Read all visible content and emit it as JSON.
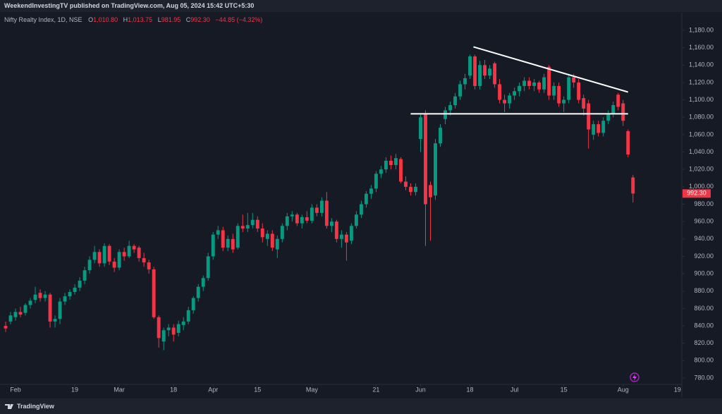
{
  "chart_data": {
    "type": "candlestick",
    "header": "WeekendInvestingTV published on TradingView.com, Aug 05, 2024 15:42 UTC+5:30",
    "legend_title": "Nifty Realty Index, 1D, NSE",
    "ohlc_letters": [
      "O",
      "H",
      "L",
      "C"
    ],
    "ohlc_labels": [
      "1,010.80",
      "1,013.75",
      "981.95",
      "992.30"
    ],
    "change_label": "−44.85 (−4.32%)",
    "last_price_label": "992.30",
    "brand": "TradingView",
    "up_color": "#089981",
    "down_color": "#f23645",
    "candles": [
      [
        840,
        845,
        833,
        837
      ],
      [
        845,
        856,
        842,
        852
      ],
      [
        850,
        860,
        846,
        856
      ],
      [
        856,
        862,
        850,
        853
      ],
      [
        855,
        866,
        852,
        864
      ],
      [
        864,
        872,
        860,
        869
      ],
      [
        870,
        885,
        866,
        876
      ],
      [
        878,
        882,
        868,
        872
      ],
      [
        872,
        880,
        868,
        876
      ],
      [
        876,
        878,
        838,
        845
      ],
      [
        845,
        852,
        838,
        848
      ],
      [
        848,
        872,
        842,
        868
      ],
      [
        868,
        878,
        864,
        874
      ],
      [
        874,
        882,
        870,
        879
      ],
      [
        879,
        888,
        876,
        884
      ],
      [
        884,
        896,
        880,
        892
      ],
      [
        892,
        908,
        888,
        904
      ],
      [
        904,
        920,
        900,
        916
      ],
      [
        916,
        932,
        912,
        925
      ],
      [
        925,
        928,
        908,
        912
      ],
      [
        912,
        935,
        908,
        932
      ],
      [
        932,
        934,
        910,
        914
      ],
      [
        914,
        918,
        902,
        907
      ],
      [
        907,
        928,
        904,
        925
      ],
      [
        925,
        930,
        915,
        920
      ],
      [
        920,
        938,
        918,
        932
      ],
      [
        932,
        934,
        924,
        928
      ],
      [
        930,
        932,
        914,
        918
      ],
      [
        918,
        924,
        908,
        913
      ],
      [
        913,
        916,
        900,
        905
      ],
      [
        905,
        908,
        848,
        850
      ],
      [
        850,
        852,
        815,
        826
      ],
      [
        822,
        838,
        812,
        835
      ],
      [
        835,
        842,
        828,
        838
      ],
      [
        838,
        842,
        822,
        830
      ],
      [
        832,
        846,
        828,
        842
      ],
      [
        841,
        850,
        835,
        845
      ],
      [
        845,
        862,
        842,
        858
      ],
      [
        858,
        874,
        854,
        872
      ],
      [
        872,
        888,
        868,
        885
      ],
      [
        885,
        898,
        880,
        895
      ],
      [
        895,
        924,
        892,
        920
      ],
      [
        920,
        948,
        916,
        945
      ],
      [
        945,
        955,
        940,
        950
      ],
      [
        950,
        954,
        926,
        930
      ],
      [
        930,
        944,
        926,
        940
      ],
      [
        940,
        946,
        924,
        928
      ],
      [
        930,
        958,
        928,
        955
      ],
      [
        955,
        968,
        948,
        952
      ],
      [
        952,
        970,
        948,
        956
      ],
      [
        956,
        970,
        952,
        962
      ],
      [
        962,
        966,
        948,
        952
      ],
      [
        952,
        958,
        936,
        942
      ],
      [
        940,
        950,
        932,
        946
      ],
      [
        946,
        950,
        926,
        930
      ],
      [
        928,
        944,
        918,
        940
      ],
      [
        940,
        958,
        936,
        955
      ],
      [
        955,
        970,
        950,
        966
      ],
      [
        966,
        972,
        960,
        968
      ],
      [
        968,
        970,
        955,
        958
      ],
      [
        958,
        968,
        952,
        965
      ],
      [
        965,
        972,
        958,
        961
      ],
      [
        961,
        980,
        958,
        976
      ],
      [
        976,
        980,
        966,
        970
      ],
      [
        970,
        988,
        966,
        984
      ],
      [
        984,
        994,
        952,
        955
      ],
      [
        955,
        964,
        948,
        960
      ],
      [
        960,
        962,
        936,
        940
      ],
      [
        940,
        950,
        930,
        945
      ],
      [
        945,
        948,
        915,
        936
      ],
      [
        938,
        958,
        934,
        955
      ],
      [
        955,
        972,
        952,
        968
      ],
      [
        968,
        984,
        964,
        980
      ],
      [
        980,
        995,
        976,
        992
      ],
      [
        992,
        1002,
        986,
        998
      ],
      [
        998,
        1018,
        994,
        1015
      ],
      [
        1015,
        1024,
        1010,
        1020
      ],
      [
        1020,
        1034,
        1016,
        1030
      ],
      [
        1030,
        1036,
        1020,
        1025
      ],
      [
        1025,
        1038,
        1020,
        1033
      ],
      [
        1032,
        1034,
        1004,
        1006
      ],
      [
        1006,
        1012,
        996,
        1000
      ],
      [
        1000,
        1004,
        990,
        994
      ],
      [
        994,
        1004,
        990,
        1000
      ],
      [
        1055,
        1084,
        1040,
        1080
      ],
      [
        1084,
        1088,
        932,
        980
      ],
      [
        1002,
        1006,
        938,
        988
      ],
      [
        990,
        1055,
        985,
        1050
      ],
      [
        1050,
        1072,
        1046,
        1068
      ],
      [
        1078,
        1092,
        1072,
        1088
      ],
      [
        1088,
        1098,
        1082,
        1094
      ],
      [
        1094,
        1108,
        1090,
        1104
      ],
      [
        1104,
        1122,
        1100,
        1118
      ],
      [
        1118,
        1130,
        1112,
        1125
      ],
      [
        1128,
        1152,
        1124,
        1150
      ],
      [
        1150,
        1152,
        1112,
        1116
      ],
      [
        1116,
        1145,
        1112,
        1140
      ],
      [
        1140,
        1146,
        1124,
        1128
      ],
      [
        1128,
        1140,
        1124,
        1136
      ],
      [
        1142,
        1144,
        1114,
        1118
      ],
      [
        1118,
        1124,
        1096,
        1100
      ],
      [
        1100,
        1106,
        1086,
        1096
      ],
      [
        1096,
        1108,
        1090,
        1105
      ],
      [
        1105,
        1114,
        1100,
        1110
      ],
      [
        1110,
        1120,
        1104,
        1116
      ],
      [
        1116,
        1126,
        1110,
        1122
      ],
      [
        1122,
        1126,
        1112,
        1116
      ],
      [
        1116,
        1124,
        1110,
        1120
      ],
      [
        1120,
        1122,
        1108,
        1112
      ],
      [
        1112,
        1130,
        1108,
        1126
      ],
      [
        1138,
        1140,
        1100,
        1105
      ],
      [
        1105,
        1120,
        1100,
        1116
      ],
      [
        1116,
        1120,
        1092,
        1096
      ],
      [
        1096,
        1104,
        1086,
        1100
      ],
      [
        1100,
        1130,
        1096,
        1126
      ],
      [
        1126,
        1130,
        1114,
        1120
      ],
      [
        1120,
        1124,
        1096,
        1100
      ],
      [
        1102,
        1106,
        1082,
        1090
      ],
      [
        1096,
        1100,
        1044,
        1066
      ],
      [
        1060,
        1076,
        1054,
        1072
      ],
      [
        1072,
        1076,
        1058,
        1062
      ],
      [
        1062,
        1080,
        1058,
        1076
      ],
      [
        1076,
        1088,
        1072,
        1084
      ],
      [
        1084,
        1098,
        1080,
        1094
      ],
      [
        1106,
        1108,
        1088,
        1092
      ],
      [
        1096,
        1100,
        1070,
        1076
      ],
      [
        1064,
        1066,
        1034,
        1037.15
      ],
      [
        1010.8,
        1013.75,
        981.95,
        992.3
      ]
    ],
    "lines": [
      {
        "x": [
          94.7,
          126
        ],
        "y": [
          1161,
          1109
        ],
        "color": "#ffffff"
      },
      {
        "x": [
          82,
          126
        ],
        "y": [
          1084,
          1084
        ],
        "color": "#ffffff"
      }
    ],
    "xlim": [
      -1.14,
      136.6
    ],
    "xticks": [
      {
        "value": 2,
        "label": "Feb"
      },
      {
        "value": 14,
        "label": "19"
      },
      {
        "value": 23,
        "label": "Mar"
      },
      {
        "value": 34,
        "label": "18"
      },
      {
        "value": 42,
        "label": "Apr"
      },
      {
        "value": 51,
        "label": "15"
      },
      {
        "value": 62,
        "label": "May"
      },
      {
        "value": 75,
        "label": "21"
      },
      {
        "value": 84,
        "label": "Jun"
      },
      {
        "value": 94,
        "label": "18"
      },
      {
        "value": 103,
        "label": "Jul"
      },
      {
        "value": 113,
        "label": "15"
      },
      {
        "value": 125,
        "label": "Aug"
      },
      {
        "value": 136,
        "label": "19"
      }
    ],
    "ylim": [
      772.7,
      1200.3
    ],
    "yticks": [
      {
        "value": 780,
        "label": "780.00"
      },
      {
        "value": 800,
        "label": "800.00"
      },
      {
        "value": 820,
        "label": "820.00"
      },
      {
        "value": 840,
        "label": "840.00"
      },
      {
        "value": 860,
        "label": "860.00"
      },
      {
        "value": 880,
        "label": "880.00"
      },
      {
        "value": 900,
        "label": "900.00"
      },
      {
        "value": 920,
        "label": "920.00"
      },
      {
        "value": 940,
        "label": "940.00"
      },
      {
        "value": 960,
        "label": "960.00"
      },
      {
        "value": 980,
        "label": "980.00"
      },
      {
        "value": 1000,
        "label": "1,000.00"
      },
      {
        "value": 1020,
        "label": "1,020.00"
      },
      {
        "value": 1040,
        "label": "1,040.00"
      },
      {
        "value": 1060,
        "label": "1,060.00"
      },
      {
        "value": 1080,
        "label": "1,080.00"
      },
      {
        "value": 1100,
        "label": "1,100.00"
      },
      {
        "value": 1120,
        "label": "1,120.00"
      },
      {
        "value": 1140,
        "label": "1,140.00"
      },
      {
        "value": 1160,
        "label": "1,160.00"
      },
      {
        "value": 1180,
        "label": "1,180.00"
      }
    ],
    "grid": false
  }
}
